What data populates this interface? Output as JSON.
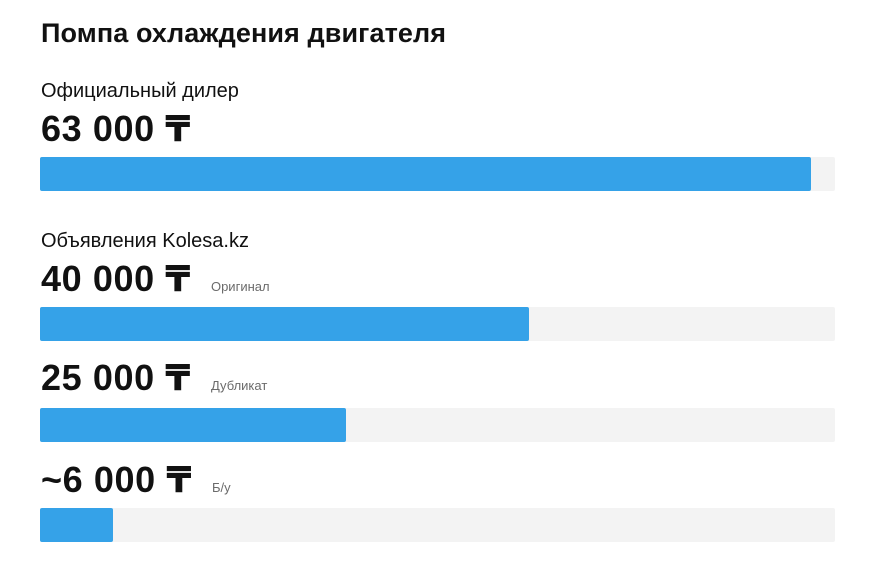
{
  "chart_data": {
    "type": "bar",
    "orientation": "horizontal",
    "title": "Помпа охлаждения двигателя",
    "groups": [
      {
        "label": "Официальный дилер",
        "items": [
          {
            "price_label": "63 000 ₸",
            "sublabel": "",
            "value": 63000
          }
        ]
      },
      {
        "label": "Объявления Kolesa.kz",
        "items": [
          {
            "price_label": "40 000 ₸",
            "sublabel": "Оригинал",
            "value": 40000
          },
          {
            "price_label": "25 000 ₸",
            "sublabel": "Дубликат",
            "value": 25000
          },
          {
            "price_label": "~6 000 ₸",
            "sublabel": "Б/у",
            "value": 6000
          }
        ]
      }
    ],
    "xlim": [
      0,
      65000
    ],
    "grid": false,
    "colors": {
      "bar": "#35a2e8",
      "track": "#f3f3f3"
    }
  }
}
